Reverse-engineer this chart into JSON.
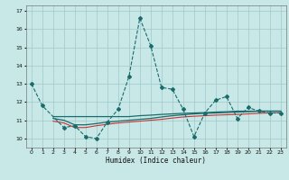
{
  "title": "",
  "xlabel": "Humidex (Indice chaleur)",
  "xlim": [
    -0.5,
    23.5
  ],
  "ylim": [
    9.5,
    17.3
  ],
  "yticks": [
    10,
    11,
    12,
    13,
    14,
    15,
    16,
    17
  ],
  "xticks": [
    0,
    1,
    2,
    3,
    4,
    5,
    6,
    7,
    8,
    9,
    10,
    11,
    12,
    13,
    14,
    15,
    16,
    17,
    18,
    19,
    20,
    21,
    22,
    23
  ],
  "background_color": "#c8e8e8",
  "grid_color": "#9fc8c8",
  "series1_x": [
    0,
    1,
    3,
    4,
    5,
    6,
    7,
    8,
    9,
    10,
    11,
    12,
    13,
    14,
    15,
    16,
    17,
    18,
    19,
    20,
    21,
    22,
    23
  ],
  "series1_y": [
    13.0,
    11.8,
    10.6,
    10.7,
    10.1,
    10.0,
    10.9,
    11.6,
    13.4,
    16.6,
    15.1,
    12.8,
    12.7,
    11.6,
    10.1,
    11.4,
    12.1,
    12.3,
    11.1,
    11.7,
    11.5,
    11.4,
    11.4
  ],
  "series1_color": "#1a6b6b",
  "series2_x": [
    2,
    3,
    4,
    5,
    6,
    7,
    8,
    9,
    10,
    11,
    12,
    13,
    14,
    15,
    16,
    17,
    18,
    19,
    20,
    21,
    22,
    23
  ],
  "series2_y": [
    11.2,
    11.2,
    11.2,
    11.2,
    11.2,
    11.2,
    11.2,
    11.2,
    11.25,
    11.28,
    11.32,
    11.35,
    11.38,
    11.4,
    11.42,
    11.45,
    11.47,
    11.5,
    11.5,
    11.5,
    11.5,
    11.5
  ],
  "series2_color": "#1a6b6b",
  "series3_x": [
    2,
    3,
    4,
    5,
    6,
    7,
    8,
    9,
    10,
    11,
    12,
    13,
    14,
    15,
    16,
    17,
    18,
    19,
    20,
    21,
    22,
    23
  ],
  "series3_y": [
    11.1,
    11.0,
    10.75,
    10.75,
    10.82,
    10.9,
    10.95,
    11.0,
    11.05,
    11.1,
    11.18,
    11.25,
    11.3,
    11.35,
    11.38,
    11.4,
    11.42,
    11.45,
    11.47,
    11.5,
    11.5,
    11.5
  ],
  "series3_color": "#1a6b6b",
  "series4_x": [
    2,
    3,
    4,
    5,
    6,
    7,
    8,
    9,
    10,
    11,
    12,
    13,
    14,
    15,
    16,
    17,
    18,
    19,
    20,
    21,
    22,
    23
  ],
  "series4_y": [
    10.95,
    10.85,
    10.6,
    10.6,
    10.7,
    10.78,
    10.85,
    10.9,
    10.95,
    11.0,
    11.05,
    11.12,
    11.18,
    11.22,
    11.25,
    11.28,
    11.3,
    11.32,
    11.35,
    11.38,
    11.4,
    11.42
  ],
  "series4_color": "#cc3333"
}
